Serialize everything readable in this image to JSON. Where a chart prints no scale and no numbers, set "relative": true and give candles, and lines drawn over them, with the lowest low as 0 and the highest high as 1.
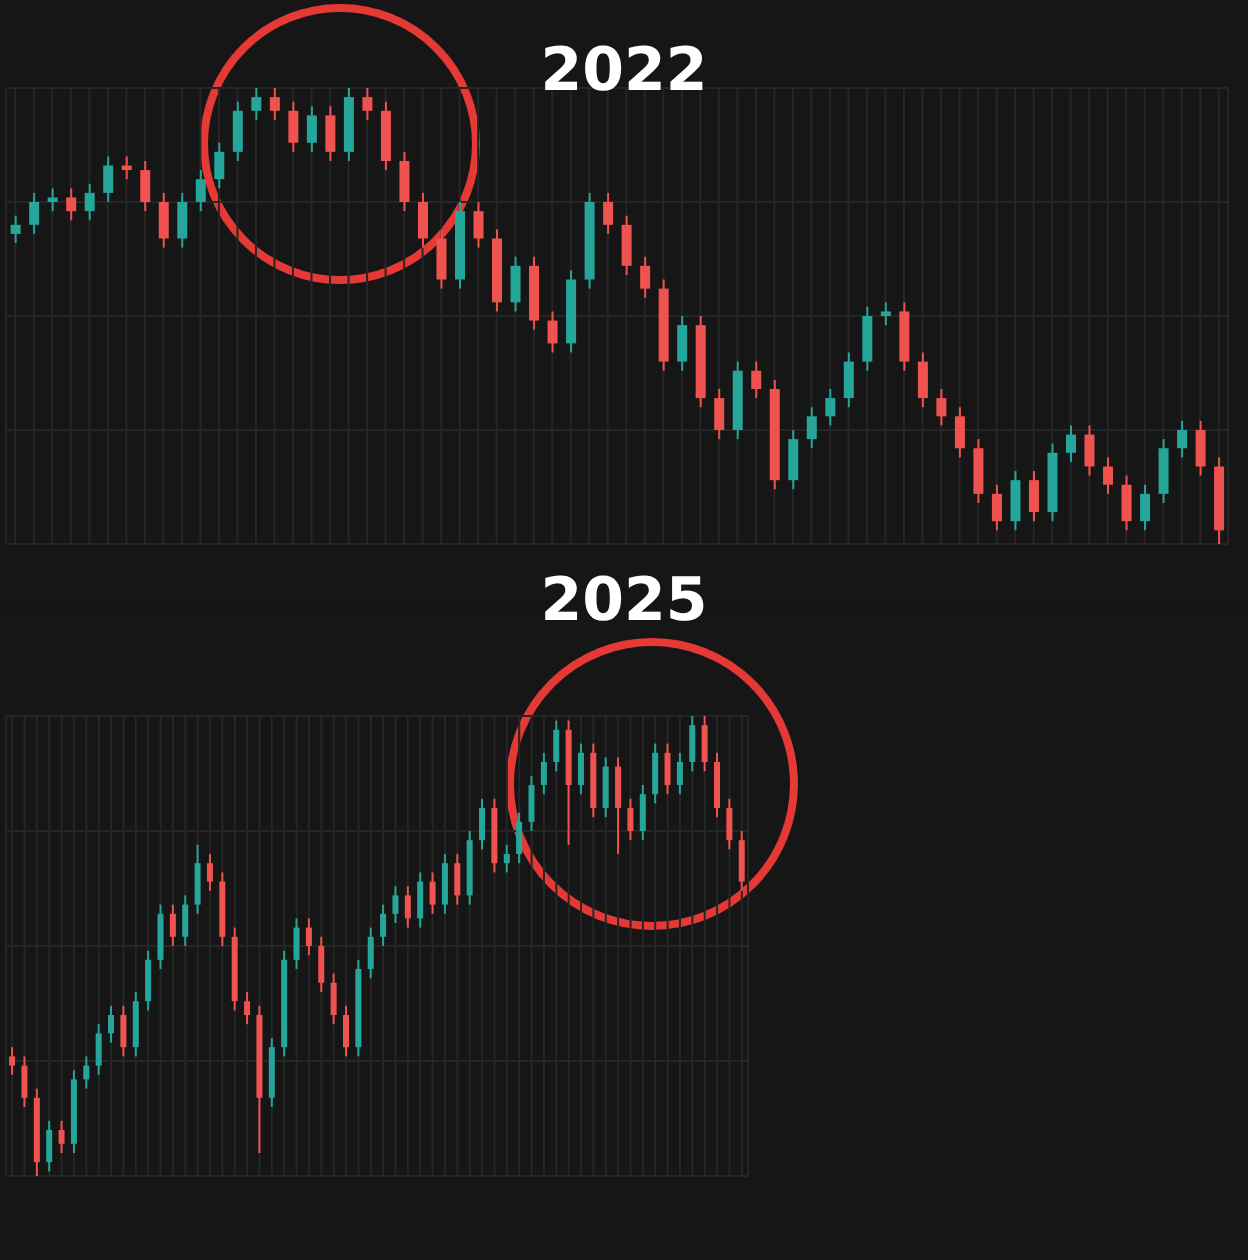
{
  "chart_data": [
    {
      "type": "candlestick",
      "title": "2022",
      "relative": true,
      "grid": true,
      "categories": [
        null,
        null,
        null,
        null,
        null,
        null,
        null,
        null,
        null,
        null,
        null,
        null,
        null,
        null,
        null,
        null,
        null,
        null,
        null,
        null,
        null,
        null,
        null,
        null,
        null,
        null,
        null,
        null,
        null,
        null,
        null,
        null,
        null,
        null,
        null,
        null,
        null,
        null,
        null,
        null,
        null,
        null,
        null,
        null,
        null,
        null,
        null,
        null,
        null,
        null,
        null,
        null,
        null,
        null,
        null,
        null,
        null,
        null,
        null,
        null,
        null,
        null,
        null,
        null,
        null,
        null
      ],
      "ohlc": [
        [
          0.68,
          0.72,
          0.66,
          0.7
        ],
        [
          0.7,
          0.77,
          0.68,
          0.75
        ],
        [
          0.75,
          0.78,
          0.73,
          0.76
        ],
        [
          0.76,
          0.78,
          0.71,
          0.73
        ],
        [
          0.73,
          0.79,
          0.71,
          0.77
        ],
        [
          0.77,
          0.85,
          0.75,
          0.83
        ],
        [
          0.83,
          0.85,
          0.8,
          0.82
        ],
        [
          0.82,
          0.84,
          0.73,
          0.75
        ],
        [
          0.75,
          0.77,
          0.65,
          0.67
        ],
        [
          0.67,
          0.77,
          0.65,
          0.75
        ],
        [
          0.75,
          0.82,
          0.73,
          0.8
        ],
        [
          0.8,
          0.88,
          0.78,
          0.86
        ],
        [
          0.86,
          0.97,
          0.84,
          0.95
        ],
        [
          0.95,
          1.0,
          0.93,
          0.98
        ],
        [
          0.98,
          1.0,
          0.93,
          0.95
        ],
        [
          0.95,
          0.97,
          0.86,
          0.88
        ],
        [
          0.88,
          0.96,
          0.86,
          0.94
        ],
        [
          0.94,
          0.96,
          0.84,
          0.86
        ],
        [
          0.86,
          1.0,
          0.84,
          0.98
        ],
        [
          0.98,
          1.0,
          0.93,
          0.95
        ],
        [
          0.95,
          0.97,
          0.82,
          0.84
        ],
        [
          0.84,
          0.86,
          0.73,
          0.75
        ],
        [
          0.75,
          0.77,
          0.65,
          0.67
        ],
        [
          0.67,
          0.69,
          0.56,
          0.58
        ],
        [
          0.58,
          0.75,
          0.56,
          0.73
        ],
        [
          0.73,
          0.75,
          0.65,
          0.67
        ],
        [
          0.67,
          0.69,
          0.51,
          0.53
        ],
        [
          0.53,
          0.63,
          0.51,
          0.61
        ],
        [
          0.61,
          0.63,
          0.47,
          0.49
        ],
        [
          0.49,
          0.51,
          0.42,
          0.44
        ],
        [
          0.44,
          0.6,
          0.42,
          0.58
        ],
        [
          0.58,
          0.77,
          0.56,
          0.75
        ],
        [
          0.75,
          0.77,
          0.68,
          0.7
        ],
        [
          0.7,
          0.72,
          0.59,
          0.61
        ],
        [
          0.61,
          0.63,
          0.54,
          0.56
        ],
        [
          0.56,
          0.58,
          0.38,
          0.4
        ],
        [
          0.4,
          0.5,
          0.38,
          0.48
        ],
        [
          0.48,
          0.5,
          0.3,
          0.32
        ],
        [
          0.32,
          0.34,
          0.23,
          0.25
        ],
        [
          0.25,
          0.4,
          0.23,
          0.38
        ],
        [
          0.38,
          0.4,
          0.32,
          0.34
        ],
        [
          0.34,
          0.36,
          0.12,
          0.14
        ],
        [
          0.14,
          0.25,
          0.12,
          0.23
        ],
        [
          0.23,
          0.3,
          0.21,
          0.28
        ],
        [
          0.28,
          0.34,
          0.26,
          0.32
        ],
        [
          0.32,
          0.42,
          0.3,
          0.4
        ],
        [
          0.4,
          0.52,
          0.38,
          0.5
        ],
        [
          0.5,
          0.53,
          0.48,
          0.51
        ],
        [
          0.51,
          0.53,
          0.38,
          0.4
        ],
        [
          0.4,
          0.42,
          0.3,
          0.32
        ],
        [
          0.32,
          0.34,
          0.26,
          0.28
        ],
        [
          0.28,
          0.3,
          0.19,
          0.21
        ],
        [
          0.21,
          0.23,
          0.09,
          0.11
        ],
        [
          0.11,
          0.13,
          0.03,
          0.05
        ],
        [
          0.05,
          0.16,
          0.03,
          0.14
        ],
        [
          0.14,
          0.16,
          0.05,
          0.07
        ],
        [
          0.07,
          0.22,
          0.05,
          0.2
        ],
        [
          0.2,
          0.26,
          0.18,
          0.24
        ],
        [
          0.24,
          0.26,
          0.15,
          0.17
        ],
        [
          0.17,
          0.19,
          0.11,
          0.13
        ],
        [
          0.13,
          0.15,
          0.03,
          0.05
        ],
        [
          0.05,
          0.13,
          0.03,
          0.11
        ],
        [
          0.11,
          0.23,
          0.09,
          0.21
        ],
        [
          0.21,
          0.27,
          0.19,
          0.25
        ],
        [
          0.25,
          0.27,
          0.15,
          0.17
        ],
        [
          0.17,
          0.19,
          0,
          0.03
        ]
      ],
      "colors": [
        "#26a69a",
        "#26a69a",
        "#26a69a",
        "#ef5350",
        "#26a69a",
        "#26a69a",
        "#ef5350",
        "#ef5350",
        "#ef5350",
        "#26a69a",
        "#26a69a",
        "#26a69a",
        "#26a69a",
        "#26a69a",
        "#ef5350",
        "#ef5350",
        "#26a69a",
        "#ef5350",
        "#26a69a",
        "#ef5350",
        "#ef5350",
        "#ef5350",
        "#ef5350",
        "#ef5350",
        "#26a69a",
        "#ef5350",
        "#ef5350",
        "#26a69a",
        "#ef5350",
        "#ef5350",
        "#26a69a",
        "#26a69a",
        "#ef5350",
        "#ef5350",
        "#ef5350",
        "#ef5350",
        "#26a69a",
        "#ef5350",
        "#ef5350",
        "#26a69a",
        "#ef5350",
        "#ef5350",
        "#26a69a",
        "#26a69a",
        "#26a69a",
        "#26a69a",
        "#26a69a",
        "#26a69a",
        "#ef5350",
        "#ef5350",
        "#ef5350",
        "#ef5350",
        "#ef5350",
        "#ef5350",
        "#26a69a",
        "#ef5350",
        "#26a69a",
        "#26a69a",
        "#ef5350",
        "#ef5350",
        "#ef5350",
        "#26a69a",
        "#26a69a",
        "#26a69a",
        "#ef5350",
        "#ef5350"
      ]
    },
    {
      "type": "candlestick",
      "title": "2025",
      "relative": true,
      "grid": true,
      "categories": [
        null,
        null,
        null,
        null,
        null,
        null,
        null,
        null,
        null,
        null,
        null,
        null,
        null,
        null,
        null,
        null,
        null,
        null,
        null,
        null,
        null,
        null,
        null,
        null,
        null,
        null,
        null,
        null,
        null,
        null,
        null,
        null,
        null,
        null,
        null,
        null,
        null,
        null,
        null,
        null,
        null,
        null,
        null,
        null,
        null,
        null,
        null,
        null,
        null,
        null,
        null,
        null,
        null,
        null,
        null,
        null,
        null,
        null,
        null,
        null
      ],
      "ohlc": [
        [
          0.26,
          0.28,
          0.22,
          0.24
        ],
        [
          0.24,
          0.26,
          0.15,
          0.17
        ],
        [
          0.17,
          0.19,
          0,
          0.03
        ],
        [
          0.03,
          0.12,
          0.01,
          0.1
        ],
        [
          0.1,
          0.12,
          0.05,
          0.07
        ],
        [
          0.07,
          0.23,
          0.05,
          0.21
        ],
        [
          0.21,
          0.26,
          0.19,
          0.24
        ],
        [
          0.24,
          0.33,
          0.22,
          0.31
        ],
        [
          0.31,
          0.37,
          0.29,
          0.35
        ],
        [
          0.35,
          0.37,
          0.26,
          0.28
        ],
        [
          0.28,
          0.4,
          0.26,
          0.38
        ],
        [
          0.38,
          0.49,
          0.36,
          0.47
        ],
        [
          0.47,
          0.59,
          0.45,
          0.57
        ],
        [
          0.57,
          0.59,
          0.5,
          0.52
        ],
        [
          0.52,
          0.61,
          0.5,
          0.59
        ],
        [
          0.59,
          0.72,
          0.57,
          0.68
        ],
        [
          0.68,
          0.7,
          0.62,
          0.64
        ],
        [
          0.64,
          0.66,
          0.5,
          0.52
        ],
        [
          0.52,
          0.54,
          0.36,
          0.38
        ],
        [
          0.38,
          0.4,
          0.33,
          0.35
        ],
        [
          0.35,
          0.37,
          0.05,
          0.17
        ],
        [
          0.17,
          0.3,
          0.15,
          0.28
        ],
        [
          0.28,
          0.49,
          0.26,
          0.47
        ],
        [
          0.47,
          0.56,
          0.45,
          0.54
        ],
        [
          0.54,
          0.56,
          0.48,
          0.5
        ],
        [
          0.5,
          0.52,
          0.4,
          0.42
        ],
        [
          0.42,
          0.44,
          0.33,
          0.35
        ],
        [
          0.35,
          0.37,
          0.26,
          0.28
        ],
        [
          0.28,
          0.47,
          0.26,
          0.45
        ],
        [
          0.45,
          0.54,
          0.43,
          0.52
        ],
        [
          0.52,
          0.59,
          0.5,
          0.57
        ],
        [
          0.57,
          0.63,
          0.55,
          0.61
        ],
        [
          0.61,
          0.63,
          0.54,
          0.56
        ],
        [
          0.56,
          0.66,
          0.54,
          0.64
        ],
        [
          0.64,
          0.66,
          0.57,
          0.59
        ],
        [
          0.59,
          0.7,
          0.57,
          0.68
        ],
        [
          0.68,
          0.7,
          0.59,
          0.61
        ],
        [
          0.61,
          0.75,
          0.59,
          0.73
        ],
        [
          0.73,
          0.82,
          0.71,
          0.8
        ],
        [
          0.8,
          0.82,
          0.66,
          0.68
        ],
        [
          0.68,
          0.72,
          0.66,
          0.7
        ],
        [
          0.7,
          0.79,
          0.68,
          0.77
        ],
        [
          0.77,
          0.87,
          0.75,
          0.85
        ],
        [
          0.85,
          0.92,
          0.83,
          0.9
        ],
        [
          0.9,
          0.99,
          0.88,
          0.97
        ],
        [
          0.97,
          0.99,
          0.72,
          0.85
        ],
        [
          0.85,
          0.94,
          0.83,
          0.92
        ],
        [
          0.92,
          0.94,
          0.78,
          0.8
        ],
        [
          0.8,
          0.91,
          0.78,
          0.89
        ],
        [
          0.89,
          0.91,
          0.7,
          0.8
        ],
        [
          0.8,
          0.82,
          0.73,
          0.75
        ],
        [
          0.75,
          0.85,
          0.73,
          0.83
        ],
        [
          0.83,
          0.94,
          0.81,
          0.92
        ],
        [
          0.92,
          0.94,
          0.83,
          0.85
        ],
        [
          0.85,
          0.92,
          0.83,
          0.9
        ],
        [
          0.9,
          1.0,
          0.88,
          0.98
        ],
        [
          0.98,
          1.0,
          0.88,
          0.9
        ],
        [
          0.9,
          0.92,
          0.78,
          0.8
        ],
        [
          0.8,
          0.82,
          0.71,
          0.73
        ],
        [
          0.73,
          0.75,
          0.62,
          0.64
        ]
      ],
      "colors": [
        "#ef5350",
        "#ef5350",
        "#ef5350",
        "#26a69a",
        "#ef5350",
        "#26a69a",
        "#26a69a",
        "#26a69a",
        "#26a69a",
        "#ef5350",
        "#26a69a",
        "#26a69a",
        "#26a69a",
        "#ef5350",
        "#26a69a",
        "#26a69a",
        "#ef5350",
        "#ef5350",
        "#ef5350",
        "#ef5350",
        "#ef5350",
        "#26a69a",
        "#26a69a",
        "#26a69a",
        "#ef5350",
        "#ef5350",
        "#ef5350",
        "#ef5350",
        "#26a69a",
        "#26a69a",
        "#26a69a",
        "#26a69a",
        "#ef5350",
        "#26a69a",
        "#ef5350",
        "#26a69a",
        "#ef5350",
        "#26a69a",
        "#26a69a",
        "#ef5350",
        "#26a69a",
        "#26a69a",
        "#26a69a",
        "#26a69a",
        "#26a69a",
        "#ef5350",
        "#26a69a",
        "#ef5350",
        "#26a69a",
        "#ef5350",
        "#ef5350",
        "#26a69a",
        "#26a69a",
        "#ef5350",
        "#26a69a",
        "#26a69a",
        "#ef5350",
        "#ef5350",
        "#ef5350",
        "#ef5350"
      ]
    }
  ]
}
